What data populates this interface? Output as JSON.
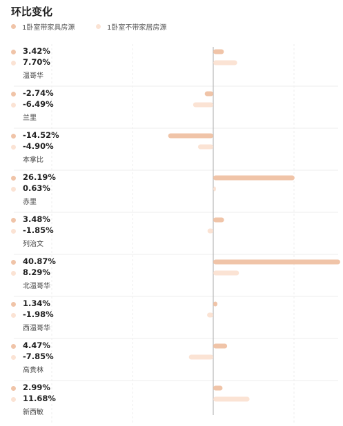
{
  "chart_data": {
    "type": "bar",
    "orientation": "horizontal",
    "title": "环比变化",
    "categories": [
      "温哥华",
      "兰里",
      "本拿比",
      "赤里",
      "列治文",
      "北温哥华",
      "西温哥华",
      "高贵林",
      "新西敏"
    ],
    "series": [
      {
        "name": "1卧室带家具房源",
        "color": "#f0c4a8",
        "values": [
          3.42,
          -2.74,
          -14.52,
          26.19,
          3.48,
          40.87,
          1.34,
          4.47,
          2.99
        ],
        "labels": [
          "3.42%",
          "-2.74%",
          "-14.52%",
          "26.19%",
          "3.48%",
          "40.87%",
          "1.34%",
          "4.47%",
          "2.99%"
        ]
      },
      {
        "name": "1卧室不带家居房源",
        "color": "#fbe3d4",
        "values": [
          7.7,
          -6.49,
          -4.9,
          0.63,
          -1.85,
          8.29,
          -1.98,
          -7.85,
          11.68
        ],
        "labels": [
          "7.70%",
          "-6.49%",
          "-4.90%",
          "0.63%",
          "-1.85%",
          "8.29%",
          "-1.98%",
          "-7.85%",
          "11.68%"
        ]
      }
    ],
    "xlim": [
      -15,
      41
    ],
    "grid": true,
    "legend_position": "top-left"
  }
}
